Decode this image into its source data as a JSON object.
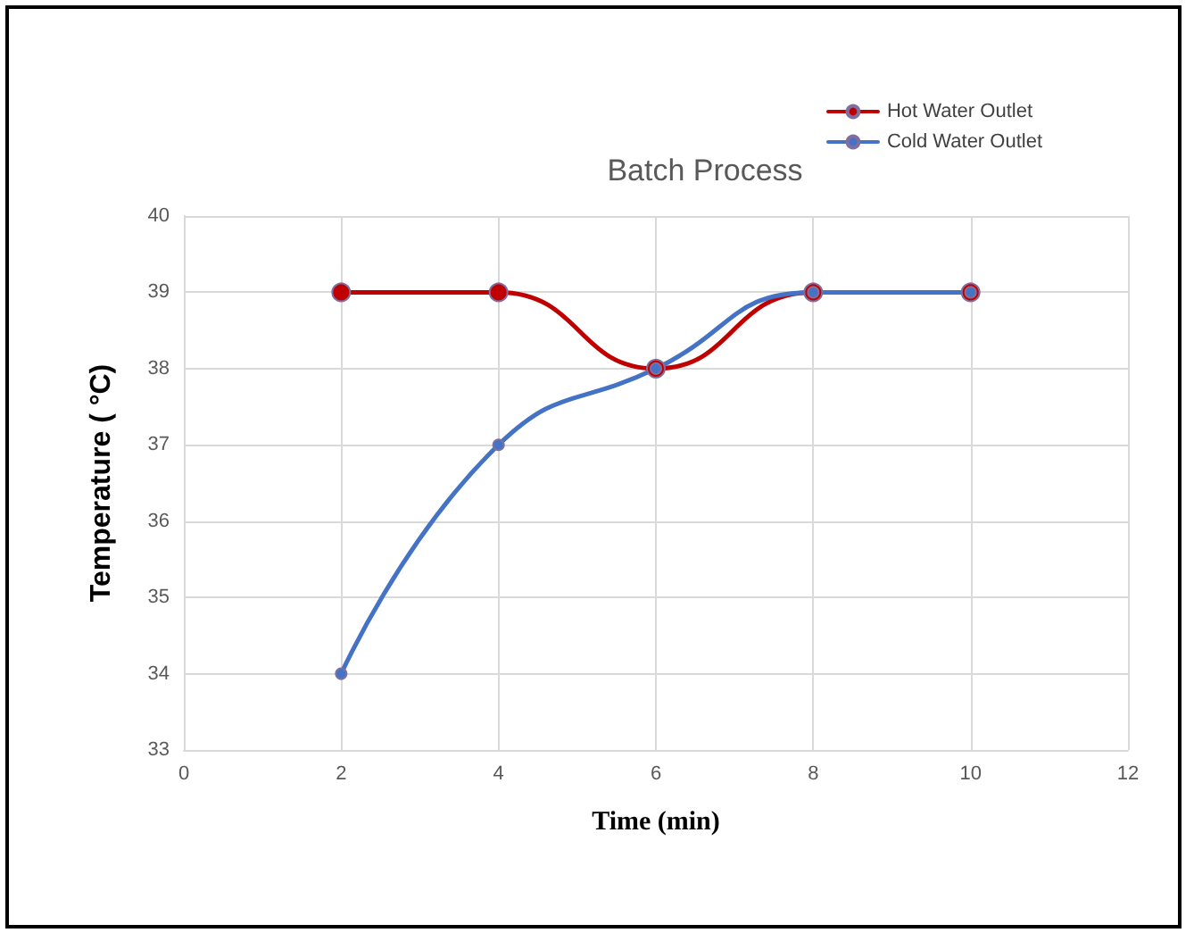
{
  "chart_data": {
    "type": "line",
    "title": "Batch Process",
    "xlabel": "Time (min)",
    "ylabel": "Temperature ( °C)",
    "x": [
      2,
      4,
      6,
      8,
      10
    ],
    "series": [
      {
        "name": "Hot Water Outlet",
        "color": "#c00000",
        "values": [
          39,
          39,
          38,
          39,
          39
        ]
      },
      {
        "name": "Cold Water Outlet",
        "color": "#4472c4",
        "values": [
          34,
          37,
          38,
          39,
          39
        ]
      }
    ],
    "xlim": [
      0,
      12
    ],
    "xticks": [
      0,
      2,
      4,
      6,
      8,
      10,
      12
    ],
    "ylim": [
      33,
      40
    ],
    "yticks": [
      33,
      34,
      35,
      36,
      37,
      38,
      39,
      40
    ],
    "grid": true,
    "legend": "top right",
    "marker": "circle",
    "line_style": "solid"
  }
}
